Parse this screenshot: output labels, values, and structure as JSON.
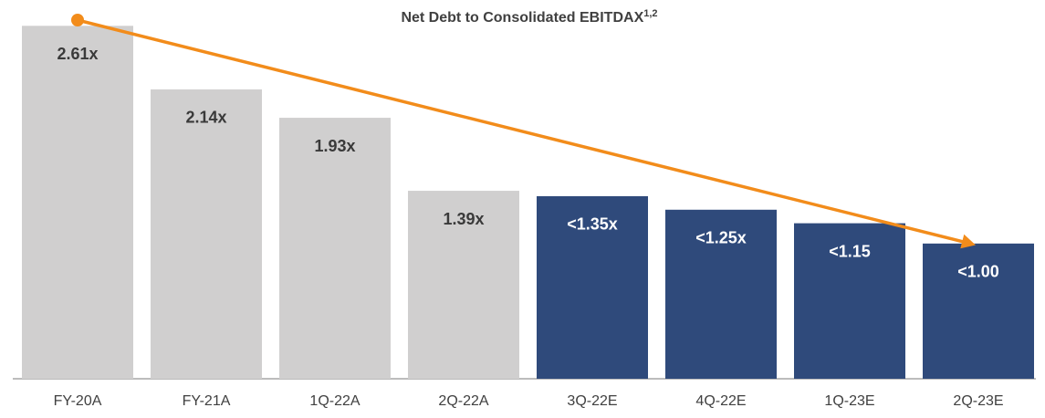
{
  "chart_data": {
    "type": "bar",
    "title": "Net Debt to Consolidated EBITDAX",
    "title_superscript": "1,2",
    "categories": [
      "FY-20A",
      "FY-21A",
      "1Q-22A",
      "2Q-22A",
      "3Q-22E",
      "4Q-22E",
      "1Q-23E",
      "2Q-23E"
    ],
    "values": [
      2.61,
      2.14,
      1.93,
      1.39,
      1.35,
      1.25,
      1.15,
      1.0
    ],
    "value_labels": [
      "2.61x",
      "2.14x",
      "1.93x",
      "1.39x",
      "<1.35x",
      "<1.25x",
      "<1.15",
      "<1.00"
    ],
    "colors": [
      "#d0cfcf",
      "#d0cfcf",
      "#d0cfcf",
      "#d0cfcf",
      "#2f4a7b",
      "#2f4a7b",
      "#2f4a7b",
      "#2f4a7b"
    ],
    "value_label_colors": [
      "#3a3a3a",
      "#3a3a3a",
      "#3a3a3a",
      "#3a3a3a",
      "#ffffff",
      "#ffffff",
      "#ffffff",
      "#ffffff"
    ],
    "ylim": [
      0,
      2.72
    ]
  }
}
